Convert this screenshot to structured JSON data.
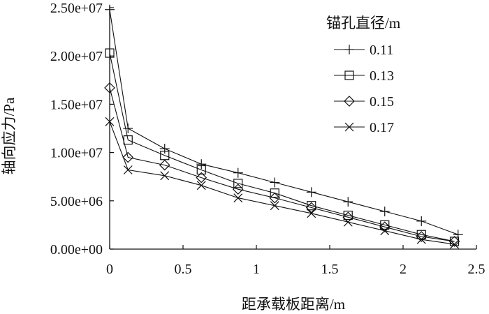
{
  "chart_data": {
    "type": "line",
    "xlabel": "距承载板距离/m",
    "ylabel": "轴向应力/Pa",
    "xlim": [
      0,
      2.5
    ],
    "ylim": [
      0,
      25000000
    ],
    "xticks": [
      {
        "value": 0,
        "label": "0"
      },
      {
        "value": 0.5,
        "label": "0.5"
      },
      {
        "value": 1,
        "label": "1"
      },
      {
        "value": 1.5,
        "label": "1.5"
      },
      {
        "value": 2,
        "label": "2"
      },
      {
        "value": 2.5,
        "label": "2.5"
      }
    ],
    "yticks": [
      {
        "value": 0,
        "label": "0.00e+00"
      },
      {
        "value": 5000000,
        "label": "5.00e+06"
      },
      {
        "value": 10000000,
        "label": "1.00e+07"
      },
      {
        "value": 15000000,
        "label": "1.50e+07"
      },
      {
        "value": 20000000,
        "label": "2.00e+07"
      },
      {
        "value": 25000000,
        "label": "2.50e+07"
      }
    ],
    "grid": false,
    "legend": {
      "title": "锚孔直径/m",
      "placement": "top-right"
    },
    "series": [
      {
        "name": "0.11",
        "marker": "plus",
        "x": [
          0,
          0.125,
          0.375,
          0.625,
          0.875,
          1.125,
          1.375,
          1.625,
          1.875,
          2.125,
          2.375
        ],
        "y": [
          24800000,
          12500000,
          10400000,
          8800000,
          7900000,
          6900000,
          5900000,
          4900000,
          3900000,
          2900000,
          1500000
        ]
      },
      {
        "name": "0.13",
        "marker": "square",
        "x": [
          0,
          0.125,
          0.375,
          0.625,
          0.875,
          1.125,
          1.375,
          1.625,
          1.875,
          2.125,
          2.35
        ],
        "y": [
          20300000,
          11300000,
          9700000,
          8200000,
          6800000,
          5800000,
          4500000,
          3500000,
          2500000,
          1500000,
          800000
        ]
      },
      {
        "name": "0.15",
        "marker": "diamond",
        "x": [
          0,
          0.125,
          0.375,
          0.625,
          0.875,
          1.125,
          1.375,
          1.625,
          1.875,
          2.125,
          2.35
        ],
        "y": [
          16700000,
          9500000,
          8700000,
          7400000,
          6200000,
          5300000,
          4300000,
          3300000,
          2300000,
          1300000,
          800000
        ]
      },
      {
        "name": "0.17",
        "marker": "cross",
        "x": [
          0,
          0.125,
          0.375,
          0.625,
          0.875,
          1.125,
          1.375,
          1.625,
          1.875,
          2.125,
          2.35
        ],
        "y": [
          13200000,
          8200000,
          7600000,
          6600000,
          5300000,
          4500000,
          3700000,
          2800000,
          1900000,
          1000000,
          500000
        ]
      }
    ]
  }
}
